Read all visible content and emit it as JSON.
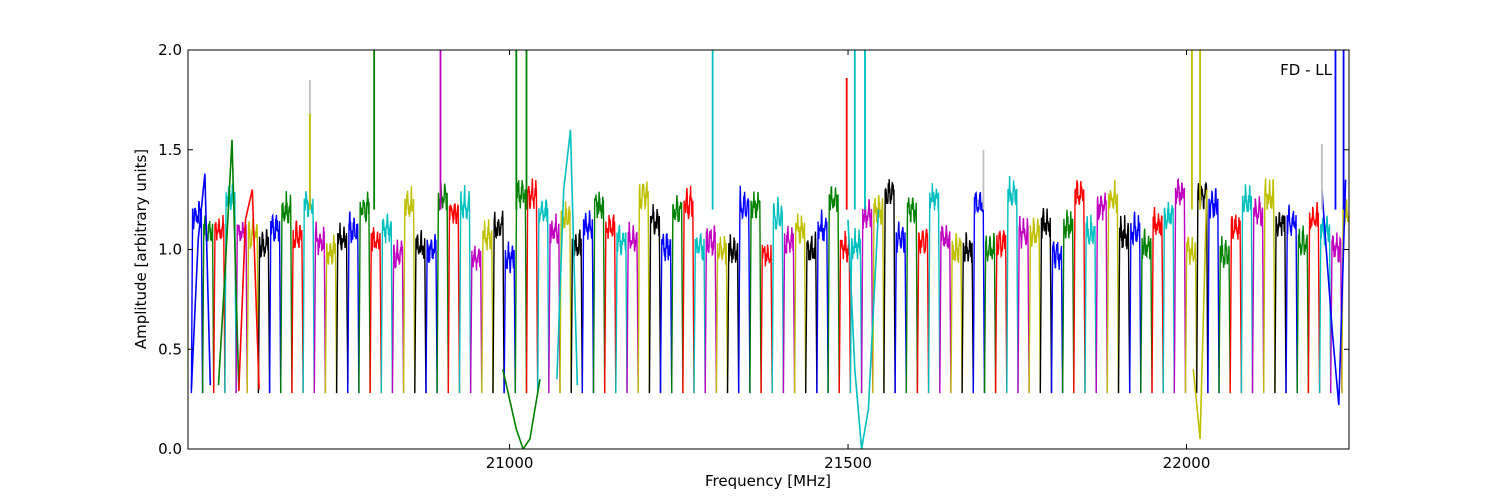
{
  "chart_data": {
    "type": "line",
    "title": "",
    "annotation": "FD - LL",
    "xlabel": "Frequency [MHz]",
    "ylabel": "Amplitude [arbitrary units]",
    "xlim": [
      20525,
      22240
    ],
    "ylim": [
      0.0,
      2.0
    ],
    "xticks": [
      21000,
      21500,
      22000
    ],
    "xtick_labels": [
      "21000",
      "21500",
      "22000"
    ],
    "yticks": [
      0.0,
      0.5,
      1.0,
      1.5,
      2.0
    ],
    "ytick_labels": [
      "0.0",
      "0.5",
      "1.0",
      "1.5",
      "2.0"
    ],
    "grid": false,
    "legend": "none",
    "colors": [
      "#0000ff",
      "#008000",
      "#ff0000",
      "#00bfbf",
      "#bf00bf",
      "#bfbf00",
      "#000000"
    ],
    "spectral_windows": {
      "start_mhz": 20530,
      "spacing_mhz": 16.5,
      "count": 104,
      "typical_min": 0.28,
      "typical_max": 1.4
    },
    "series": [
      {
        "color": "#0000ff",
        "x": [
          20530,
          20540,
          20550,
          20558
        ],
        "y": [
          0.3,
          1.05,
          1.38,
          0.32
        ]
      },
      {
        "color": "#008000",
        "x": [
          20570,
          20580,
          20590,
          20600
        ],
        "y": [
          0.32,
          0.9,
          1.55,
          0.3
        ]
      },
      {
        "color": "#ff0000",
        "x": [
          20600,
          20610,
          20620,
          20630
        ],
        "y": [
          0.29,
          1.15,
          1.3,
          0.3
        ]
      },
      {
        "color": "#008000",
        "x": [
          20990,
          21010,
          21020,
          21030,
          21045
        ],
        "y": [
          0.4,
          0.1,
          0.0,
          0.05,
          0.35
        ]
      },
      {
        "color": "#00bfbf",
        "x": [
          21070,
          21080,
          21090,
          21100
        ],
        "y": [
          0.35,
          1.3,
          1.6,
          0.32
        ]
      },
      {
        "color": "#00bfbf",
        "x": [
          21500,
          21510,
          21520,
          21530,
          21545
        ],
        "y": [
          1.15,
          0.4,
          0.0,
          0.2,
          1.2
        ]
      },
      {
        "color": "#bfbf00",
        "x": [
          22010,
          22020,
          22030
        ],
        "y": [
          0.4,
          0.05,
          1.3
        ]
      },
      {
        "color": "#0000ff",
        "x": [
          22200,
          22215,
          22225,
          22235
        ],
        "y": [
          1.3,
          0.6,
          0.22,
          1.35
        ]
      }
    ],
    "spikes": [
      {
        "x": 20705,
        "y": 1.85,
        "color": "#bfbfbf"
      },
      {
        "x": 20705,
        "y": 1.68,
        "color": "#bfbf00"
      },
      {
        "x": 20800,
        "y": 2.0,
        "color": "#008000"
      },
      {
        "x": 20898,
        "y": 2.0,
        "color": "#bf00bf"
      },
      {
        "x": 21010,
        "y": 2.0,
        "color": "#008000"
      },
      {
        "x": 21025,
        "y": 2.0,
        "color": "#008000"
      },
      {
        "x": 21300,
        "y": 2.0,
        "color": "#00bfbf"
      },
      {
        "x": 21498,
        "y": 1.86,
        "color": "#ff0000"
      },
      {
        "x": 21510,
        "y": 2.0,
        "color": "#00bfbf"
      },
      {
        "x": 21525,
        "y": 2.0,
        "color": "#00bfbf"
      },
      {
        "x": 21700,
        "y": 1.5,
        "color": "#bfbfbf"
      },
      {
        "x": 22008,
        "y": 2.0,
        "color": "#bfbf00"
      },
      {
        "x": 22020,
        "y": 2.0,
        "color": "#bfbf00"
      },
      {
        "x": 22200,
        "y": 1.53,
        "color": "#bfbfbf"
      },
      {
        "x": 22220,
        "y": 2.0,
        "color": "#0000ff"
      },
      {
        "x": 22232,
        "y": 2.0,
        "color": "#0000ff"
      }
    ]
  }
}
